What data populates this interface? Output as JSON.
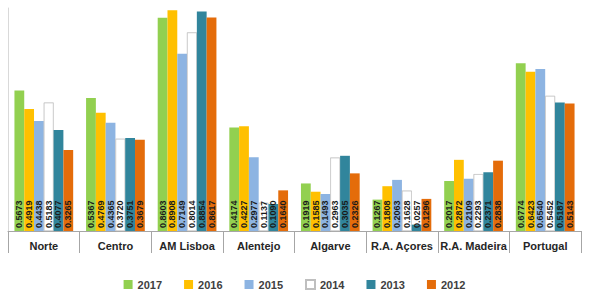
{
  "chart_data": {
    "type": "bar",
    "categories": [
      "Norte",
      "Centro",
      "AM Lisboa",
      "Alentejo",
      "Algarve",
      "R.A. Açores",
      "R.A. Madeira",
      "Portugal"
    ],
    "series": [
      {
        "name": "2017",
        "color": "#92D050",
        "values": [
          0.5673,
          0.5367,
          0.8603,
          0.4174,
          0.1919,
          0.1267,
          0.2017,
          0.6774
        ],
        "value_labels": [
          "0.5673",
          "0.5367",
          "0.8603",
          "0.4174",
          "0.1919",
          "0.1267",
          "0.2017",
          "0.6774"
        ]
      },
      {
        "name": "2016",
        "color": "#FFC000",
        "values": [
          0.4919,
          0.4769,
          0.8908,
          0.4227,
          0.1585,
          0.1808,
          0.2872,
          0.6423
        ],
        "value_labels": [
          "0.4919",
          "0.4769",
          "0.8908",
          "0.4227",
          "0.1585",
          "0.1808",
          "0.2872",
          "0.6423"
        ]
      },
      {
        "name": "2015",
        "color": "#8DB4E2",
        "values": [
          0.4438,
          0.4365,
          0.7149,
          0.2977,
          0.1493,
          0.2063,
          0.2109,
          0.654
        ],
        "value_labels": [
          "0.4438",
          "0.4365",
          "0.7149",
          "0.2977",
          "0.1493",
          "0.2063",
          "0.2109",
          "0.6540"
        ]
      },
      {
        "name": "2014",
        "color": "#FFFFFF",
        "values": [
          0.5183,
          0.372,
          0.8014,
          0.1137,
          0.2963,
          0.1628,
          0.2293,
          0.5452
        ],
        "value_labels": [
          "0.5183",
          "0.3720",
          "0.8014",
          "0.1137",
          "0.2963",
          "0.1628",
          "0.2293",
          "0.5452"
        ]
      },
      {
        "name": "2013",
        "color": "#31859C",
        "values": [
          0.4077,
          0.3751,
          0.8854,
          0.109,
          0.3035,
          0.0257,
          0.2371,
          0.5187
        ],
        "value_labels": [
          "0.4077",
          "0.3751",
          "0.8854",
          "0.1090",
          "0.3035",
          "0.0257",
          "0.2371",
          "0.5187"
        ]
      },
      {
        "name": "2012",
        "color": "#E46C0A",
        "values": [
          0.3265,
          0.3679,
          0.8617,
          0.164,
          0.2326,
          0.1296,
          0.2838,
          0.5143
        ],
        "value_labels": [
          "0.3265",
          "0.3679",
          "0.8617",
          "0.1640",
          "0.2326",
          "0.1296",
          "0.2838",
          "0.5143"
        ]
      }
    ],
    "ylim": [
      0,
      0.9
    ],
    "grid": false,
    "legend": "bottom",
    "data_labels": true,
    "tick_labels": "x"
  }
}
